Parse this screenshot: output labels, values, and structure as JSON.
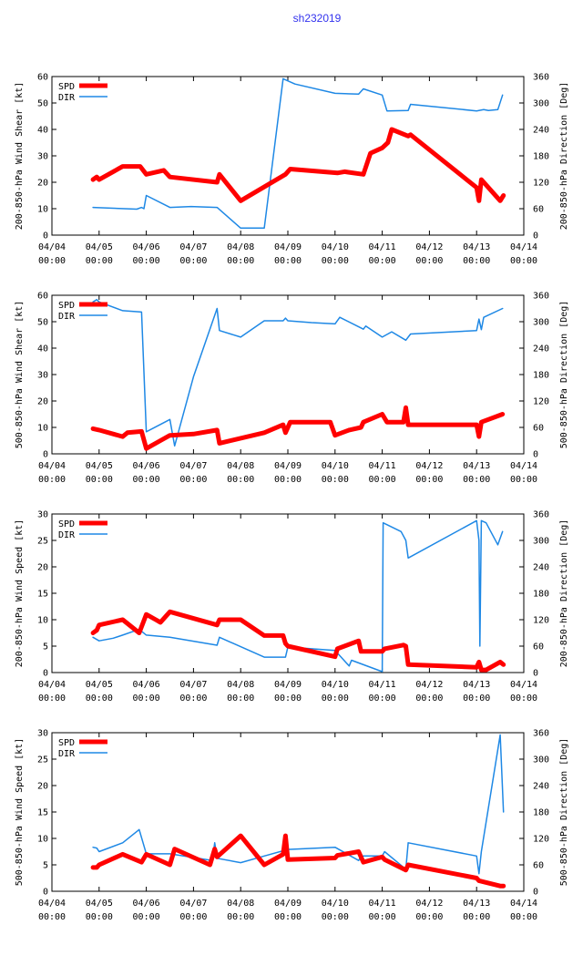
{
  "title": "sh232019",
  "colors": {
    "spd": "#ff0000",
    "dir": "#1e88e5",
    "title": "#3333ee"
  },
  "legend": {
    "spd": "SPD",
    "dir": "DIR"
  },
  "x_ticks": [
    {
      "date": "04/04",
      "time": "00:00"
    },
    {
      "date": "04/05",
      "time": "00:00"
    },
    {
      "date": "04/06",
      "time": "00:00"
    },
    {
      "date": "04/07",
      "time": "00:00"
    },
    {
      "date": "04/08",
      "time": "00:00"
    },
    {
      "date": "04/09",
      "time": "00:00"
    },
    {
      "date": "04/10",
      "time": "00:00"
    },
    {
      "date": "04/11",
      "time": "00:00"
    },
    {
      "date": "04/12",
      "time": "00:00"
    },
    {
      "date": "04/13",
      "time": "00:00"
    },
    {
      "date": "04/14",
      "time": "00:00"
    }
  ],
  "chart_data": [
    {
      "type": "line",
      "ylabel": "200-850-hPa Wind Shear [kt]",
      "y2label": "200-850-hPa Direction [Deg]",
      "ylim": [
        0,
        60
      ],
      "yticks": [
        0,
        10,
        20,
        30,
        40,
        50,
        60
      ],
      "y2lim": [
        0,
        360
      ],
      "y2ticks": [
        0,
        60,
        120,
        180,
        240,
        300,
        360
      ],
      "xlim": [
        0,
        10
      ],
      "series": [
        {
          "name": "SPD",
          "axis": "left",
          "x": [
            0.87,
            0.95,
            1.0,
            1.5,
            1.87,
            2.0,
            2.37,
            2.5,
            3.5,
            3.55,
            4.0,
            4.95,
            5.05,
            6.05,
            6.2,
            6.6,
            6.75,
            7.0,
            7.12,
            7.2,
            7.55,
            7.6,
            9.0,
            9.05,
            9.1,
            9.2,
            9.5,
            9.57
          ],
          "y": [
            21,
            22,
            21,
            26,
            26,
            23,
            24.5,
            22,
            20,
            23,
            13,
            23,
            25,
            23.5,
            24,
            23,
            31,
            33,
            35,
            40,
            37.5,
            38,
            18,
            13,
            21,
            19,
            13,
            15
          ]
        },
        {
          "name": "DIR",
          "axis": "right",
          "x": [
            0.87,
            1.8,
            1.9,
            1.95,
            2.0,
            2.5,
            2.95,
            3.5,
            4.0,
            4.5,
            4.9,
            5.15,
            6.0,
            6.5,
            6.6,
            7.0,
            7.1,
            7.55,
            7.6,
            9.0,
            9.15,
            9.25,
            9.45,
            9.55
          ],
          "y": [
            63,
            59,
            63,
            60,
            90,
            63,
            65,
            63,
            16,
            16,
            355,
            343,
            322,
            320,
            332,
            318,
            282,
            283,
            297,
            282,
            285,
            283,
            285,
            318
          ]
        }
      ]
    },
    {
      "type": "line",
      "ylabel": "500-850-hPa Wind Shear [kt]",
      "y2label": "500-850-hPa Direction [Deg]",
      "ylim": [
        0,
        60
      ],
      "yticks": [
        0,
        10,
        20,
        30,
        40,
        50,
        60
      ],
      "y2lim": [
        0,
        360
      ],
      "y2ticks": [
        0,
        60,
        120,
        180,
        240,
        300,
        360
      ],
      "xlim": [
        0,
        10
      ],
      "series": [
        {
          "name": "SPD",
          "axis": "left",
          "x": [
            0.87,
            1.0,
            1.5,
            1.6,
            1.9,
            2.0,
            2.3,
            2.5,
            3.0,
            3.5,
            3.55,
            4.5,
            4.9,
            4.95,
            5.05,
            5.9,
            6.0,
            6.3,
            6.55,
            6.6,
            7.0,
            7.1,
            7.45,
            7.5,
            7.55,
            9.0,
            9.05,
            9.1,
            9.55
          ],
          "y": [
            9.5,
            9,
            6.5,
            8,
            8.5,
            2,
            5,
            7,
            7.5,
            9,
            4,
            8,
            11,
            8,
            12,
            12,
            7,
            9,
            10,
            12,
            15,
            12,
            12,
            17.5,
            11,
            11,
            6.5,
            12,
            15
          ]
        },
        {
          "name": "DIR",
          "axis": "right",
          "x": [
            0.87,
            0.95,
            1.0,
            1.5,
            1.9,
            2.0,
            2.5,
            2.6,
            3.0,
            3.5,
            3.55,
            4.0,
            4.5,
            4.9,
            4.95,
            5.0,
            5.5,
            6.0,
            6.1,
            6.6,
            6.65,
            7.0,
            7.2,
            7.5,
            7.6,
            9.0,
            9.05,
            9.1,
            9.15,
            9.55
          ],
          "y": [
            345,
            350,
            345,
            325,
            322,
            50,
            78,
            18,
            175,
            330,
            280,
            265,
            302,
            302,
            308,
            302,
            298,
            295,
            310,
            283,
            290,
            265,
            277,
            258,
            272,
            280,
            306,
            282,
            310,
            330
          ]
        }
      ]
    },
    {
      "type": "line",
      "ylabel": "200-850-hPa Wind Speed [kt]",
      "y2label": "200-850-hPa Direction [Deg]",
      "ylim": [
        0,
        30
      ],
      "yticks": [
        0,
        5,
        10,
        15,
        20,
        25,
        30
      ],
      "y2lim": [
        0,
        360
      ],
      "y2ticks": [
        0,
        60,
        120,
        180,
        240,
        300,
        360
      ],
      "xlim": [
        0,
        10
      ],
      "series": [
        {
          "name": "SPD",
          "axis": "left",
          "x": [
            0.87,
            0.95,
            1.0,
            1.5,
            1.85,
            2.0,
            2.2,
            2.3,
            2.5,
            3.5,
            3.55,
            4.0,
            4.5,
            4.9,
            4.95,
            5.0,
            6.0,
            6.05,
            6.5,
            6.55,
            7.0,
            7.05,
            7.45,
            7.5,
            7.55,
            9.0,
            9.05,
            9.1,
            9.2,
            9.5,
            9.57
          ],
          "y": [
            7.5,
            8,
            9,
            10,
            7.5,
            11,
            10,
            9.5,
            11.5,
            9,
            10,
            10,
            7,
            7,
            5.5,
            5,
            3,
            4.5,
            6,
            4,
            4,
            4.5,
            5.2,
            5,
            1.5,
            1,
            2,
            0.5,
            0.5,
            2,
            1.5
          ]
        },
        {
          "name": "DIR",
          "axis": "right",
          "x": [
            0.87,
            1.0,
            1.3,
            1.5,
            1.85,
            2.0,
            2.5,
            3.5,
            3.55,
            4.5,
            4.95,
            5.0,
            6.0,
            6.3,
            6.35,
            7.0,
            7.02,
            7.4,
            7.5,
            7.55,
            9.0,
            9.05,
            9.07,
            9.1,
            9.2,
            9.45,
            9.55
          ],
          "y": [
            80,
            72,
            78,
            85,
            98,
            85,
            80,
            62,
            80,
            35,
            35,
            58,
            50,
            15,
            28,
            2,
            340,
            320,
            300,
            260,
            345,
            300,
            60,
            345,
            340,
            290,
            320
          ]
        }
      ]
    },
    {
      "type": "line",
      "ylabel": "500-850-hPa Wind Speed [kt]",
      "y2label": "500-850-hPa Direction [Deg]",
      "ylim": [
        0,
        30
      ],
      "yticks": [
        0,
        5,
        10,
        15,
        20,
        25,
        30
      ],
      "y2lim": [
        0,
        360
      ],
      "y2ticks": [
        0,
        60,
        120,
        180,
        240,
        300,
        360
      ],
      "xlim": [
        0,
        10
      ],
      "series": [
        {
          "name": "SPD",
          "axis": "left",
          "x": [
            0.87,
            0.95,
            1.0,
            1.5,
            1.9,
            2.0,
            2.5,
            2.6,
            3.35,
            3.45,
            3.5,
            4.0,
            4.5,
            4.9,
            4.95,
            5.0,
            6.0,
            6.05,
            6.5,
            6.6,
            7.0,
            7.05,
            7.5,
            7.55,
            9.0,
            9.05,
            9.5,
            9.57
          ],
          "y": [
            4.5,
            4.5,
            5,
            7,
            5.5,
            7,
            5,
            8,
            5,
            8,
            6.5,
            10.5,
            5,
            7,
            10.5,
            6,
            6.3,
            6.8,
            7.5,
            5.5,
            6.5,
            6,
            4,
            5,
            2.5,
            2,
            1,
            1
          ]
        },
        {
          "name": "DIR",
          "axis": "right",
          "x": [
            0.87,
            0.95,
            1.0,
            1.5,
            1.85,
            2.0,
            2.5,
            3.4,
            3.45,
            3.5,
            4.0,
            4.5,
            5.0,
            6.0,
            6.5,
            6.55,
            7.0,
            7.05,
            7.5,
            7.55,
            9.0,
            9.05,
            9.1,
            9.5,
            9.57
          ],
          "y": [
            100,
            98,
            90,
            110,
            140,
            85,
            85,
            70,
            110,
            75,
            65,
            80,
            95,
            100,
            70,
            80,
            80,
            90,
            50,
            110,
            80,
            40,
            90,
            355,
            180
          ]
        }
      ]
    }
  ]
}
